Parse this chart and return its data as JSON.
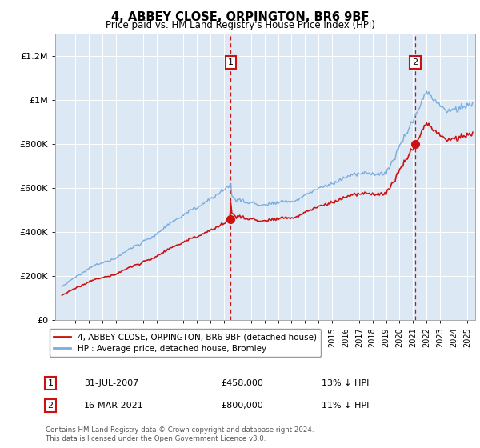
{
  "title": "4, ABBEY CLOSE, ORPINGTON, BR6 9BF",
  "subtitle": "Price paid vs. HM Land Registry's House Price Index (HPI)",
  "bg_color": "#dce9f5",
  "hpi_color": "#7aadde",
  "price_color": "#cc1111",
  "annotation1": {
    "label": "1",
    "date": "31-JUL-2007",
    "price": "£458,000",
    "pct": "13% ↓ HPI"
  },
  "annotation2": {
    "label": "2",
    "date": "16-MAR-2021",
    "price": "£800,000",
    "pct": "11% ↓ HPI"
  },
  "legend_line1": "4, ABBEY CLOSE, ORPINGTON, BR6 9BF (detached house)",
  "legend_line2": "HPI: Average price, detached house, Bromley",
  "footer": "Contains HM Land Registry data © Crown copyright and database right 2024.\nThis data is licensed under the Open Government Licence v3.0.",
  "ylim": [
    0,
    1300000
  ],
  "yticks": [
    0,
    200000,
    400000,
    600000,
    800000,
    1000000,
    1200000
  ],
  "ytick_labels": [
    "£0",
    "£200K",
    "£400K",
    "£600K",
    "£800K",
    "£1M",
    "£1.2M"
  ],
  "sale1_price": 458000,
  "sale2_price": 800000,
  "sale1_year": 2007,
  "sale1_month": 7,
  "sale2_year": 2021,
  "sale2_month": 3
}
